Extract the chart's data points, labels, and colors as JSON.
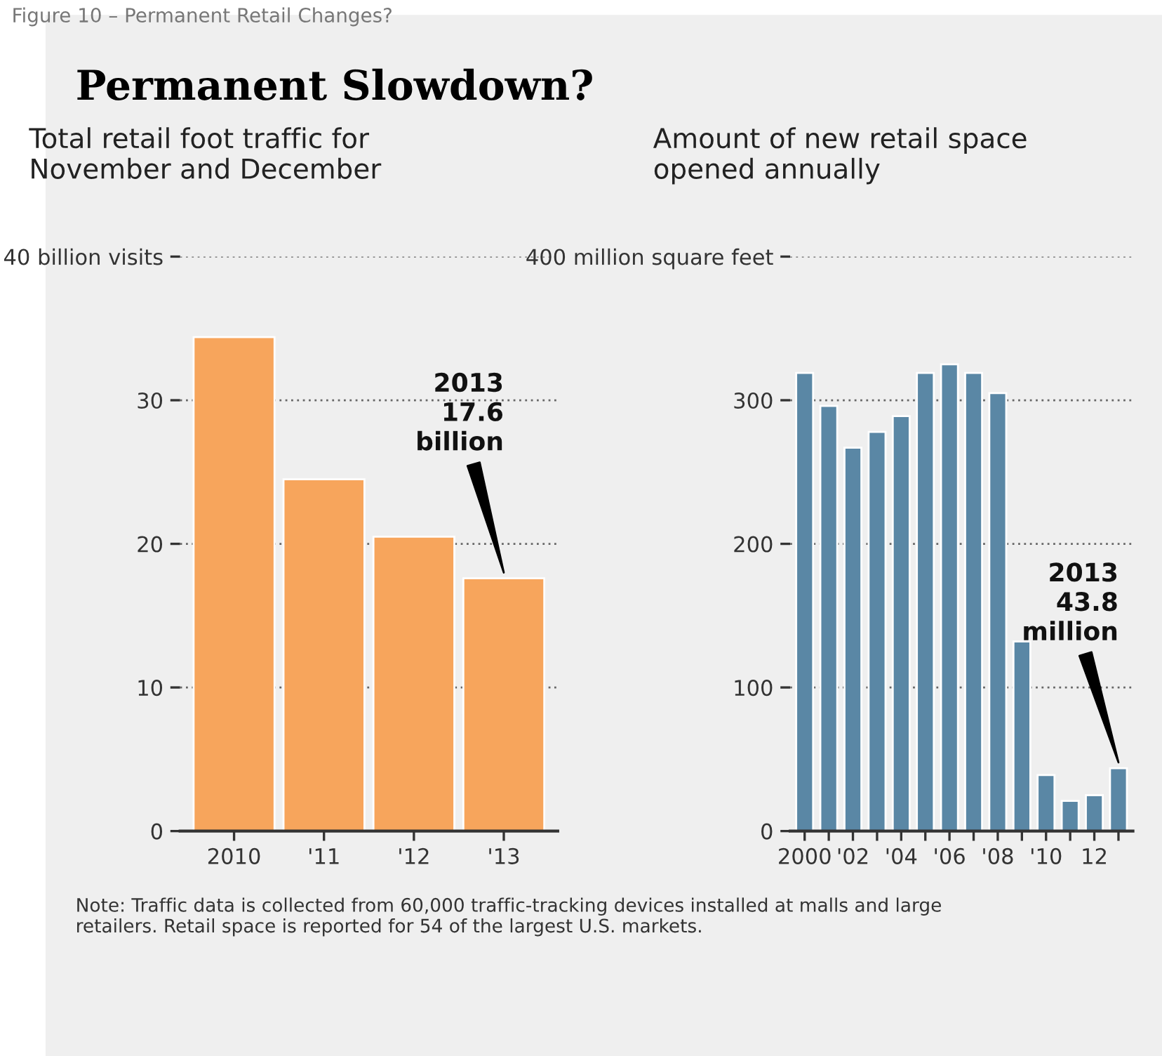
{
  "chart_data": [
    {
      "type": "bar",
      "title": "Total retail foot traffic for\nNovember and December",
      "categories": [
        "2010",
        "'11",
        "'12",
        "'13"
      ],
      "values": [
        34.4,
        24.5,
        20.5,
        17.6
      ],
      "color": "#f7a55c",
      "ylim": [
        0,
        40
      ],
      "yticks": [
        0,
        10,
        20,
        30,
        {
          "value": 40,
          "label": "40 billion visits"
        }
      ],
      "grid": "y",
      "annotations": [
        "Figure 10 – Permanent Retail Changes?",
        "Permanent Slowdown?",
        {
          "text": "2013\n17.6\nbillion",
          "x": "'13",
          "y": 17.6
        }
      ]
    },
    {
      "type": "bar",
      "title": "Amount of new retail space\nopened annually",
      "x": [
        2000,
        2001,
        2002,
        2003,
        2004,
        2005,
        2006,
        2007,
        2008,
        2009,
        2010,
        2011,
        2012,
        2013
      ],
      "xlim": [
        1999.4,
        2013.6
      ],
      "xticks": [
        2000,
        {
          "value": 2001,
          "label": null
        },
        {
          "value": 2002,
          "label": "'02"
        },
        {
          "value": 2003,
          "label": null
        },
        {
          "value": 2004,
          "label": "'04"
        },
        {
          "value": 2005,
          "label": null
        },
        {
          "value": 2006,
          "label": "'06"
        },
        {
          "value": 2007,
          "label": null
        },
        {
          "value": 2008,
          "label": "'08"
        },
        {
          "value": 2009,
          "label": null
        },
        {
          "value": 2010,
          "label": "'10"
        },
        {
          "value": 2011,
          "label": null
        },
        {
          "value": 2012,
          "label": "12"
        },
        {
          "value": 2013,
          "label": null
        }
      ],
      "values": [
        319,
        296,
        267,
        278,
        289,
        319,
        325,
        319,
        305,
        132,
        39,
        21,
        25,
        43.8
      ],
      "color": "#5a87a5",
      "ylim": [
        0,
        400
      ],
      "yticks": [
        0,
        100,
        200,
        300,
        {
          "value": 400,
          "label": "400 million square feet"
        }
      ],
      "grid": "y",
      "annotations": [
        {
          "text": "2013\n43.8\nmillion",
          "x": 2013,
          "y": 43.8
        },
        "Note: Traffic data is collected from 60,000 traffic-tracking devices installed at malls and large\nretailers. Retail space is reported for 54 of the largest U.S. markets."
      ]
    }
  ]
}
